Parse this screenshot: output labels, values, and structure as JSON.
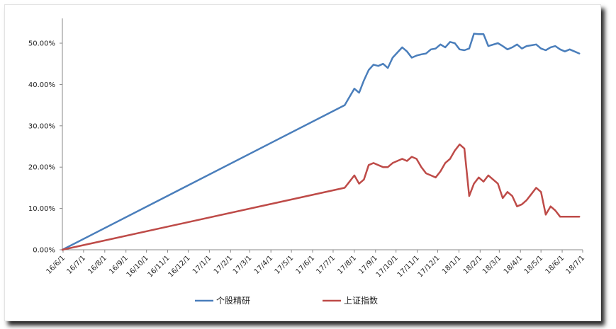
{
  "chart_data": {
    "type": "line",
    "title": "",
    "xlabel": "",
    "ylabel": "",
    "ylim": [
      0,
      0.56
    ],
    "y_ticks": [
      "0.00%",
      "10.00%",
      "20.00%",
      "30.00%",
      "40.00%",
      "50.00%"
    ],
    "y_tick_values": [
      0,
      0.1,
      0.2,
      0.3,
      0.4,
      0.5
    ],
    "x_ticks": [
      "16/6/1",
      "16/7/1",
      "16/8/1",
      "16/9/1",
      "16/10/1",
      "16/11/1",
      "16/12/1",
      "17/1/1",
      "17/2/1",
      "17/3/1",
      "17/4/1",
      "17/5/1",
      "17/6/1",
      "17/7/1",
      "17/8/1",
      "17/9/1",
      "17/10/1",
      "17/11/1",
      "17/12/1",
      "18/1/1",
      "18/2/1",
      "18/3/1",
      "18/4/1",
      "18/5/1",
      "18/6/1",
      "18/7/1"
    ],
    "x_range": [
      "16/5/31",
      "18/7/1"
    ],
    "grid": false,
    "legend_position": "bottom",
    "colors": {
      "series1": "#4a7ebb",
      "series2": "#be4b48",
      "axis": "#888888"
    },
    "series": [
      {
        "name": "个股精研",
        "color": "#4a7ebb",
        "x": [
          "16/5/31",
          "17/7/18",
          "17/7/25",
          "17/8/1",
          "17/8/8",
          "17/8/15",
          "17/8/22",
          "17/8/29",
          "17/9/5",
          "17/9/12",
          "17/9/19",
          "17/9/26",
          "17/10/10",
          "17/10/17",
          "17/10/24",
          "17/10/31",
          "17/11/7",
          "17/11/14",
          "17/11/21",
          "17/11/28",
          "17/12/5",
          "17/12/12",
          "17/12/19",
          "17/12/26",
          "18/1/2",
          "18/1/9",
          "18/1/16",
          "18/1/23",
          "18/1/30",
          "18/2/6",
          "18/2/13",
          "18/2/27",
          "18/3/6",
          "18/3/13",
          "18/3/20",
          "18/3/27",
          "18/4/3",
          "18/4/10",
          "18/4/17",
          "18/4/24",
          "18/5/1",
          "18/5/8",
          "18/5/15",
          "18/5/22",
          "18/5/29",
          "18/6/5",
          "18/6/12",
          "18/6/19",
          "18/6/26"
        ],
        "values": [
          0.0,
          0.35,
          0.37,
          0.39,
          0.38,
          0.41,
          0.435,
          0.448,
          0.445,
          0.45,
          0.44,
          0.465,
          0.49,
          0.48,
          0.465,
          0.47,
          0.473,
          0.475,
          0.485,
          0.487,
          0.497,
          0.49,
          0.503,
          0.5,
          0.485,
          0.483,
          0.487,
          0.523,
          0.522,
          0.522,
          0.493,
          0.5,
          0.493,
          0.485,
          0.49,
          0.497,
          0.487,
          0.493,
          0.495,
          0.497,
          0.487,
          0.483,
          0.49,
          0.493,
          0.485,
          0.48,
          0.485,
          0.48,
          0.475
        ]
      },
      {
        "name": "上证指数",
        "color": "#be4b48",
        "x": [
          "16/5/31",
          "17/7/18",
          "17/7/25",
          "17/8/1",
          "17/8/8",
          "17/8/15",
          "17/8/22",
          "17/8/29",
          "17/9/5",
          "17/9/12",
          "17/9/19",
          "17/9/26",
          "17/10/10",
          "17/10/17",
          "17/10/24",
          "17/10/31",
          "17/11/7",
          "17/11/14",
          "17/11/21",
          "17/11/28",
          "17/12/5",
          "17/12/12",
          "17/12/19",
          "17/12/26",
          "18/1/2",
          "18/1/9",
          "18/1/16",
          "18/1/23",
          "18/1/30",
          "18/2/6",
          "18/2/13",
          "18/2/27",
          "18/3/6",
          "18/3/13",
          "18/3/20",
          "18/3/27",
          "18/4/3",
          "18/4/10",
          "18/4/17",
          "18/4/24",
          "18/5/1",
          "18/5/8",
          "18/5/15",
          "18/5/22",
          "18/5/29",
          "18/6/5",
          "18/6/12",
          "18/6/19",
          "18/6/26"
        ],
        "values": [
          0.0,
          0.15,
          0.165,
          0.18,
          0.16,
          0.17,
          0.205,
          0.21,
          0.205,
          0.2,
          0.2,
          0.21,
          0.22,
          0.215,
          0.225,
          0.22,
          0.2,
          0.185,
          0.18,
          0.175,
          0.19,
          0.21,
          0.22,
          0.24,
          0.255,
          0.245,
          0.13,
          0.16,
          0.175,
          0.165,
          0.18,
          0.16,
          0.125,
          0.14,
          0.13,
          0.105,
          0.11,
          0.12,
          0.135,
          0.15,
          0.14,
          0.085,
          0.105,
          0.095,
          0.08,
          0.08,
          0.08,
          0.08,
          0.08
        ]
      }
    ]
  }
}
